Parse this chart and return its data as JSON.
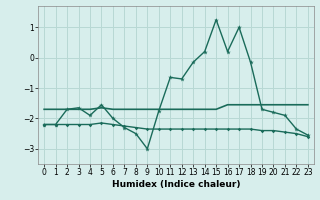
{
  "xlabel": "Humidex (Indice chaleur)",
  "background_color": "#d7eeec",
  "grid_color": "#b8d8d4",
  "line_color": "#1a6b5a",
  "xlim": [
    -0.5,
    23.5
  ],
  "ylim": [
    -3.5,
    1.7
  ],
  "yticks": [
    -3,
    -2,
    -1,
    0,
    1
  ],
  "xticks": [
    0,
    1,
    2,
    3,
    4,
    5,
    6,
    7,
    8,
    9,
    10,
    11,
    12,
    13,
    14,
    15,
    16,
    17,
    18,
    19,
    20,
    21,
    22,
    23
  ],
  "series1_x": [
    0,
    1,
    2,
    3,
    4,
    5,
    6,
    7,
    8,
    9,
    10,
    11,
    12,
    13,
    14,
    15,
    16,
    17,
    18,
    19,
    20,
    21,
    22,
    23
  ],
  "series1_y": [
    -2.2,
    -2.2,
    -1.7,
    -1.65,
    -1.9,
    -1.55,
    -2.0,
    -2.3,
    -2.5,
    -3.0,
    -1.75,
    -0.65,
    -0.7,
    -0.15,
    0.2,
    1.25,
    0.2,
    1.0,
    -0.15,
    -1.7,
    -1.8,
    -1.9,
    -2.35,
    -2.55
  ],
  "series2_x": [
    0,
    1,
    2,
    3,
    4,
    5,
    6,
    7,
    8,
    9,
    10,
    11,
    12,
    13,
    14,
    15,
    16,
    17,
    18,
    19,
    20,
    21,
    22,
    23
  ],
  "series2_y": [
    -1.7,
    -1.7,
    -1.7,
    -1.7,
    -1.7,
    -1.65,
    -1.7,
    -1.7,
    -1.7,
    -1.7,
    -1.7,
    -1.7,
    -1.7,
    -1.7,
    -1.7,
    -1.7,
    -1.55,
    -1.55,
    -1.55,
    -1.55,
    -1.55,
    -1.55,
    -1.55,
    -1.55
  ],
  "series3_x": [
    0,
    1,
    2,
    3,
    4,
    5,
    6,
    7,
    8,
    9,
    10,
    11,
    12,
    13,
    14,
    15,
    16,
    17,
    18,
    19,
    20,
    21,
    22,
    23
  ],
  "series3_y": [
    -2.2,
    -2.2,
    -2.2,
    -2.2,
    -2.2,
    -2.15,
    -2.2,
    -2.25,
    -2.3,
    -2.35,
    -2.35,
    -2.35,
    -2.35,
    -2.35,
    -2.35,
    -2.35,
    -2.35,
    -2.35,
    -2.35,
    -2.4,
    -2.4,
    -2.45,
    -2.5,
    -2.6
  ]
}
